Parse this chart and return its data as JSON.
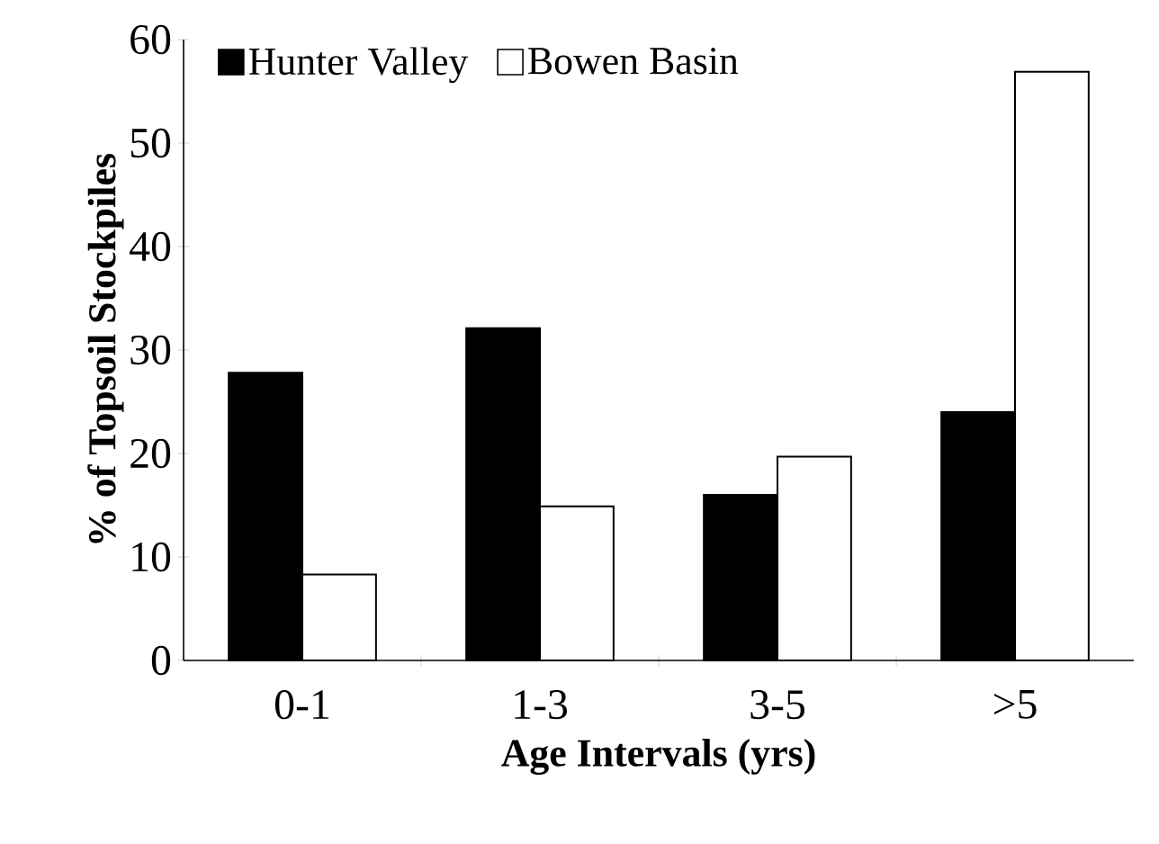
{
  "chart_data": {
    "type": "bar",
    "xlabel": "Age Intervals (yrs)",
    "ylabel": "% of Topsoil Stockpiles",
    "categories": [
      "0-1",
      "1-3",
      "3-5",
      ">5"
    ],
    "series": [
      {
        "name": "Hunter Valley",
        "color": "#000000",
        "values": [
          27.8,
          32.1,
          16.0,
          24.0
        ]
      },
      {
        "name": "Bowen Basin",
        "color": "#ffffff",
        "values": [
          8.3,
          14.9,
          19.7,
          56.9
        ]
      }
    ],
    "ylim": [
      0,
      60
    ],
    "yticks": [
      0,
      10,
      20,
      30,
      40,
      50,
      60
    ],
    "grid": false,
    "legend": "top left"
  }
}
